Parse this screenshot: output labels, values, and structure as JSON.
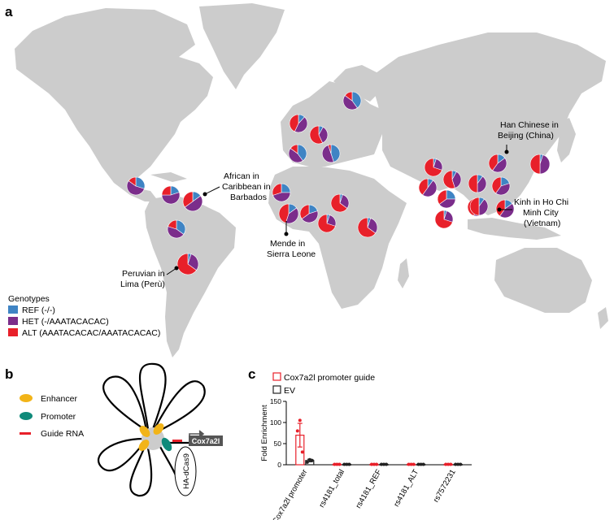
{
  "panels": {
    "a": "a",
    "b": "b",
    "c": "c"
  },
  "map": {
    "land_color": "#cccccc",
    "legend": {
      "title": "Genotypes",
      "items": [
        {
          "label": "REF (-/-)",
          "color": "#3f84c4"
        },
        {
          "label": "HET (-/AAATACACAC)",
          "color": "#7b2d8b"
        },
        {
          "label": "ALT (AAATACACAC/AAATACACAC)",
          "color": "#e8202a"
        }
      ]
    },
    "callouts": {
      "african_caribbean": [
        "African in",
        "Caribbean in",
        "Barbados"
      ],
      "peruvian": [
        "Peruvian in",
        "Lima (Perù)"
      ],
      "mende": [
        "Mende in",
        "Sierra Leone"
      ],
      "han": [
        "Han Chinese in",
        "Beijing (China)"
      ],
      "kinh": [
        "Kinh in Ho Chi",
        "Minh City",
        "(Vietnam)"
      ]
    },
    "pies": [
      {
        "ref": 0.4,
        "het": 0.45,
        "alt": 0.15
      },
      {
        "ref": 0.12,
        "het": 0.45,
        "alt": 0.43
      },
      {
        "ref": 0.08,
        "het": 0.35,
        "alt": 0.57
      },
      {
        "ref": 0.4,
        "het": 0.45,
        "alt": 0.15
      },
      {
        "ref": 0.45,
        "het": 0.5,
        "alt": 0.05
      },
      {
        "ref": 0.3,
        "het": 0.55,
        "alt": 0.15
      },
      {
        "ref": 0.2,
        "het": 0.55,
        "alt": 0.25
      },
      {
        "ref": 0.15,
        "het": 0.5,
        "alt": 0.35
      },
      {
        "ref": 0.25,
        "het": 0.45,
        "alt": 0.3
      },
      {
        "ref": 0.15,
        "het": 0.4,
        "alt": 0.45
      },
      {
        "ref": 0.2,
        "het": 0.45,
        "alt": 0.35
      },
      {
        "ref": 0.05,
        "het": 0.25,
        "alt": 0.7
      },
      {
        "ref": 0.05,
        "het": 0.3,
        "alt": 0.65
      },
      {
        "ref": 0.05,
        "het": 0.3,
        "alt": 0.65
      },
      {
        "ref": 0.05,
        "het": 0.25,
        "alt": 0.7
      },
      {
        "ref": 0.08,
        "het": 0.37,
        "alt": 0.55
      },
      {
        "ref": 0.1,
        "het": 0.4,
        "alt": 0.5
      },
      {
        "ref": 0.15,
        "het": 0.45,
        "alt": 0.4
      },
      {
        "ref": 0.2,
        "het": 0.4,
        "alt": 0.4
      },
      {
        "ref": 0.1,
        "het": 0.5,
        "alt": 0.4
      },
      {
        "ref": 0.25,
        "het": 0.4,
        "alt": 0.35
      },
      {
        "ref": 0.1,
        "het": 0.45,
        "alt": 0.45
      },
      {
        "ref": 0.15,
        "het": 0.45,
        "alt": 0.4
      },
      {
        "ref": 0.05,
        "het": 0.45,
        "alt": 0.5
      },
      {
        "ref": 0.05,
        "het": 0.3,
        "alt": 0.65
      },
      {
        "ref": 0.05,
        "het": 0.25,
        "alt": 0.7
      },
      {
        "ref": 0.1,
        "het": 0.4,
        "alt": 0.5
      },
      {
        "ref": 0.35,
        "het": 0.45,
        "alt": 0.2
      }
    ]
  },
  "schematic": {
    "legend": [
      {
        "label": "Enhancer",
        "color": "#f2b418"
      },
      {
        "label": "Promoter",
        "color": "#0f8a7a"
      },
      {
        "label": "Guide RNA",
        "color": "#e8202a"
      }
    ],
    "gene_label": "Cox7a2l",
    "dcas9_label": "HA-dCas9"
  },
  "chart_data": {
    "type": "bar",
    "categories": [
      "Cox7a2l promoter",
      "rs4181_total",
      "rs4181_REF",
      "rs4181_ALT",
      "rs7572231"
    ],
    "ylabel": "Fold Enrichment",
    "ylim": [
      0,
      150
    ],
    "yticks": [
      0,
      50,
      100,
      150
    ],
    "series": [
      {
        "name": "Cox7a2l promoter guide",
        "color": "#e8202a",
        "values": [
          70,
          1,
          1,
          1,
          1
        ],
        "sem": [
          28,
          0,
          0,
          0,
          0
        ],
        "points": [
          [
            80,
            105,
            30
          ],
          [
            1,
            1,
            1
          ],
          [
            1,
            1,
            1
          ],
          [
            1,
            1,
            1
          ],
          [
            1,
            1,
            1
          ]
        ]
      },
      {
        "name": "EV",
        "color": "#222222",
        "values": [
          10,
          1,
          1,
          1,
          1
        ],
        "sem": [
          3,
          0,
          0,
          0,
          0
        ],
        "points": [
          [
            6,
            12,
            10
          ],
          [
            1,
            1,
            1
          ],
          [
            1,
            1,
            1
          ],
          [
            1,
            1,
            1
          ],
          [
            1,
            1,
            1
          ]
        ]
      }
    ]
  }
}
